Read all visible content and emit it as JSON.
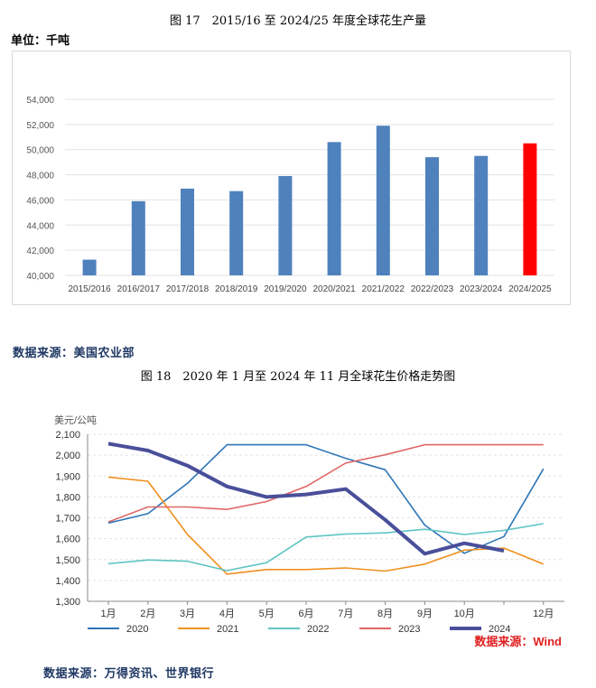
{
  "figure1": {
    "title": "图 17　2015/16 至 2024/25 年度全球花生产量",
    "unit": "单位：千吨",
    "source": "数据来源：美国农业部"
  },
  "figure2": {
    "title": "图 18　2020 年 1 月至 2024 年 11 月全球花生价格走势图",
    "source": "数据来源：万得资讯、世界银行",
    "watermark": "数据来源：Wind"
  },
  "colors": {
    "bar": "#4f81bd",
    "bar_highlight": "#ff0000",
    "s2020": "#2e75b6",
    "s2021": "#f0901f",
    "s2022": "#5fc4c4",
    "s2023": "#e06666",
    "s2024": "#4a4f9a",
    "source_text": "#1f3864",
    "watermark": "#e02020"
  },
  "chart_data": [
    {
      "type": "bar",
      "categories": [
        "2015/2016",
        "2016/2017",
        "2017/2018",
        "2018/2019",
        "2019/2020",
        "2020/2021",
        "2021/2022",
        "2022/2023",
        "2023/2024",
        "2024/2025"
      ],
      "values": [
        41250,
        45900,
        46900,
        46700,
        47900,
        50600,
        51900,
        49400,
        49500,
        50500
      ],
      "highlight_index": 9,
      "ylim": [
        40000,
        54000
      ],
      "yticks": [
        "40,000",
        "42,000",
        "44,000",
        "46,000",
        "48,000",
        "50,000",
        "52,000",
        "54,000"
      ],
      "grid": true,
      "legend": "none"
    },
    {
      "type": "line",
      "ylabel": "美元/公吨",
      "ylim": [
        1300,
        2100
      ],
      "yticks": [
        "1,300",
        "1,400",
        "1,500",
        "1,600",
        "1,700",
        "1,800",
        "1,900",
        "2,000",
        "2,100"
      ],
      "x_count": 12,
      "x_tick_labels": [
        "1月",
        "2月",
        "3月",
        "4月",
        "5月",
        "6月",
        "7月",
        "8月",
        "9月",
        "10月",
        "",
        "12月"
      ],
      "legend": "bottom",
      "grid": true,
      "series": [
        {
          "name": "2020",
          "values": [
            1675,
            1720,
            1865,
            2050,
            2050,
            2050,
            1985,
            1930,
            1665,
            1530,
            1610,
            1935
          ]
        },
        {
          "name": "2021",
          "values": [
            1895,
            1875,
            1620,
            1430,
            1452,
            1452,
            1460,
            1445,
            1478,
            1545,
            1555,
            1478
          ]
        },
        {
          "name": "2022",
          "values": [
            1480,
            1498,
            1492,
            1447,
            1485,
            1608,
            1622,
            1628,
            1645,
            1620,
            1640,
            1672
          ]
        },
        {
          "name": "2023",
          "values": [
            1680,
            1752,
            1752,
            1740,
            1778,
            1850,
            1962,
            2002,
            2050,
            2050,
            2050,
            2050
          ]
        },
        {
          "name": "2024",
          "values": [
            2055,
            2022,
            1950,
            1850,
            1800,
            1812,
            1838,
            1690,
            1528,
            1578,
            1542,
            null
          ]
        }
      ]
    }
  ]
}
